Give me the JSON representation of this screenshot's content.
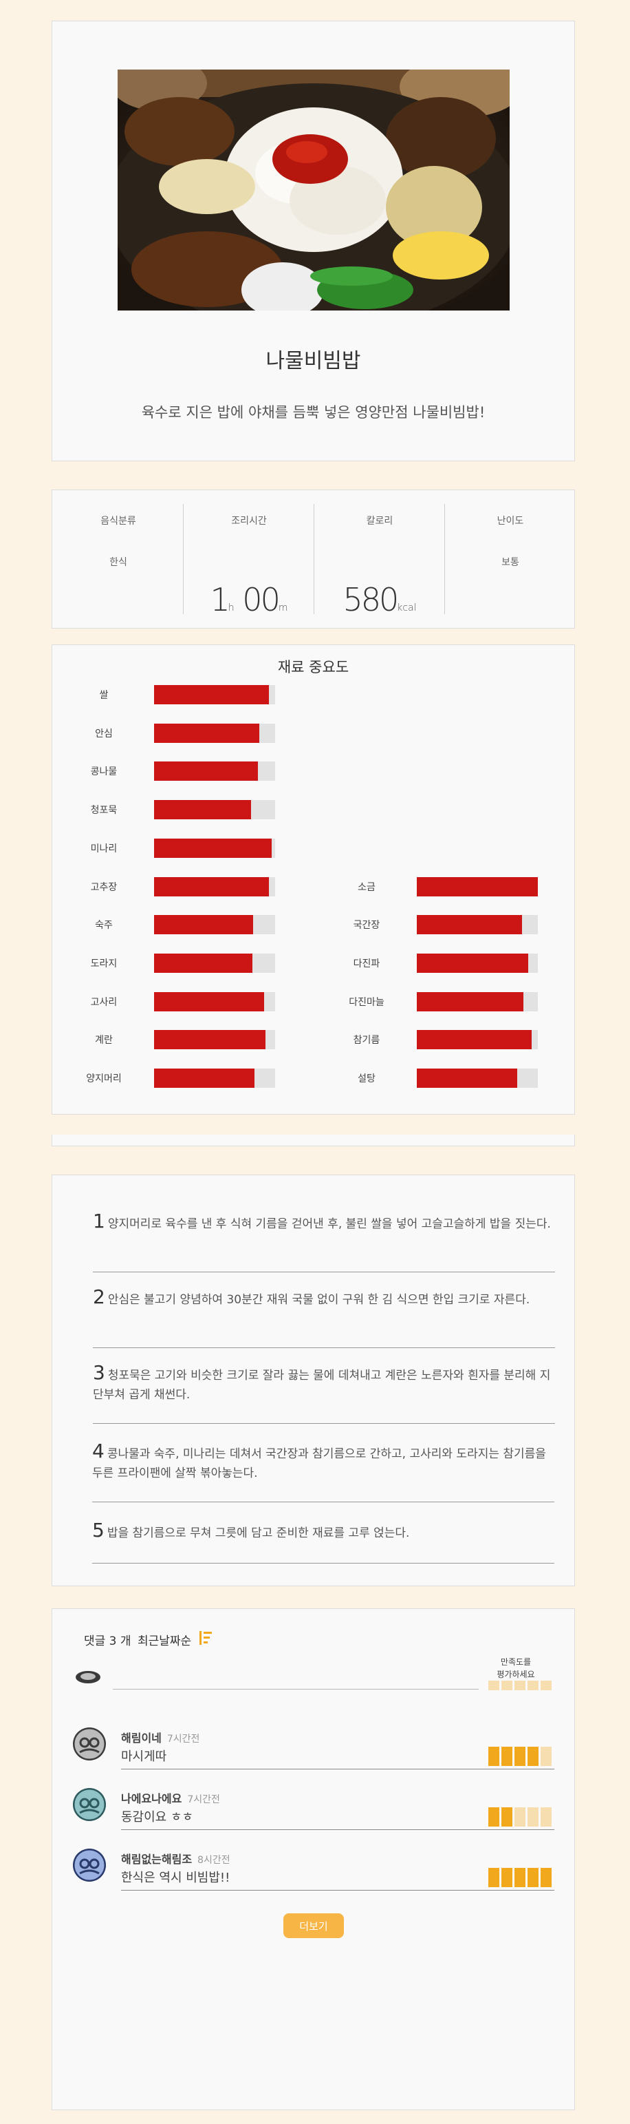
{
  "hero": {
    "title": "나물비빔밥",
    "description": "육수로 지은 밥에 야채를 듬뿍 넣은 영양만점 나물비빔밥!"
  },
  "info": {
    "category_label": "음식분류",
    "category_value": "한식",
    "time_label": "조리시간",
    "time_hours": "1",
    "time_hour_unit": "h",
    "time_minutes": "00",
    "time_minute_unit": "m",
    "calorie_label": "칼로리",
    "calorie_value": "580",
    "calorie_unit": "kcal",
    "difficulty_label": "난이도",
    "difficulty_value": "보통"
  },
  "importance": {
    "title": "재료 중요도",
    "colors": {
      "fill": "#cc1515",
      "track": "#e2e2e2"
    },
    "left": [
      {
        "name": "쌀",
        "value": 0.95
      },
      {
        "name": "안심",
        "value": 0.87
      },
      {
        "name": "콩나물",
        "value": 0.86
      },
      {
        "name": "청포묵",
        "value": 0.8
      },
      {
        "name": "미나리",
        "value": 0.97
      },
      {
        "name": "고추장",
        "value": 0.95
      },
      {
        "name": "숙주",
        "value": 0.82
      },
      {
        "name": "도라지",
        "value": 0.81
      },
      {
        "name": "고사리",
        "value": 0.91
      },
      {
        "name": "계란",
        "value": 0.92
      },
      {
        "name": "양지머리",
        "value": 0.83
      }
    ],
    "right": [
      {
        "name": "소금",
        "value": 1.0
      },
      {
        "name": "국간장",
        "value": 0.87
      },
      {
        "name": "다진파",
        "value": 0.92
      },
      {
        "name": "다진마늘",
        "value": 0.88
      },
      {
        "name": "참기름",
        "value": 0.95
      },
      {
        "name": "설탕",
        "value": 0.83
      }
    ]
  },
  "steps": [
    {
      "num": "1",
      "text": "양지머리로 육수를 낸 후 식혀 기름을 걷어낸 후, 불린 쌀을 넣어 고슬고슬하게 밥을 짓는다."
    },
    {
      "num": "2",
      "text": "안심은 불고기 양념하여 30분간 재워 국물 없이 구워 한 김 식으면 한입 크기로 자른다."
    },
    {
      "num": "3",
      "text": "청포묵은 고기와 비슷한 크기로 잘라 끓는 물에 데쳐내고 계란은 노른자와 흰자를 분리해 지단부쳐 곱게 채썬다."
    },
    {
      "num": "4",
      "text": "콩나물과 숙주, 미나리는 데쳐서 국간장과 참기름으로 간하고, 고사리와 도라지는 참기름을 두른 프라이팬에 살짝 볶아놓는다."
    },
    {
      "num": "5",
      "text": "밥을 참기름으로 무쳐 그릇에 담고 준비한 재료를 고루 얹는다."
    }
  ],
  "comments": {
    "count_label": "댓글 3 개",
    "sort_label": "최근날짜순",
    "input_value": "",
    "rating_label_line1": "만족도를",
    "rating_label_line2": "평가하세요",
    "rating_colors": {
      "on": "#f2a81c",
      "off": "#f6deb0"
    },
    "my_rating": 0,
    "more_label": "더보기",
    "items": [
      {
        "name": "해림이네",
        "time": "7시간전",
        "text": "마시게따",
        "rating": 4
      },
      {
        "name": "나에요나에요",
        "time": "7시간전",
        "text": "동감이요 ㅎㅎ",
        "rating": 2
      },
      {
        "name": "해림없는해림조",
        "time": "8시간전",
        "text": "한식은 역시 비빔밥!!",
        "rating": 5
      }
    ]
  }
}
